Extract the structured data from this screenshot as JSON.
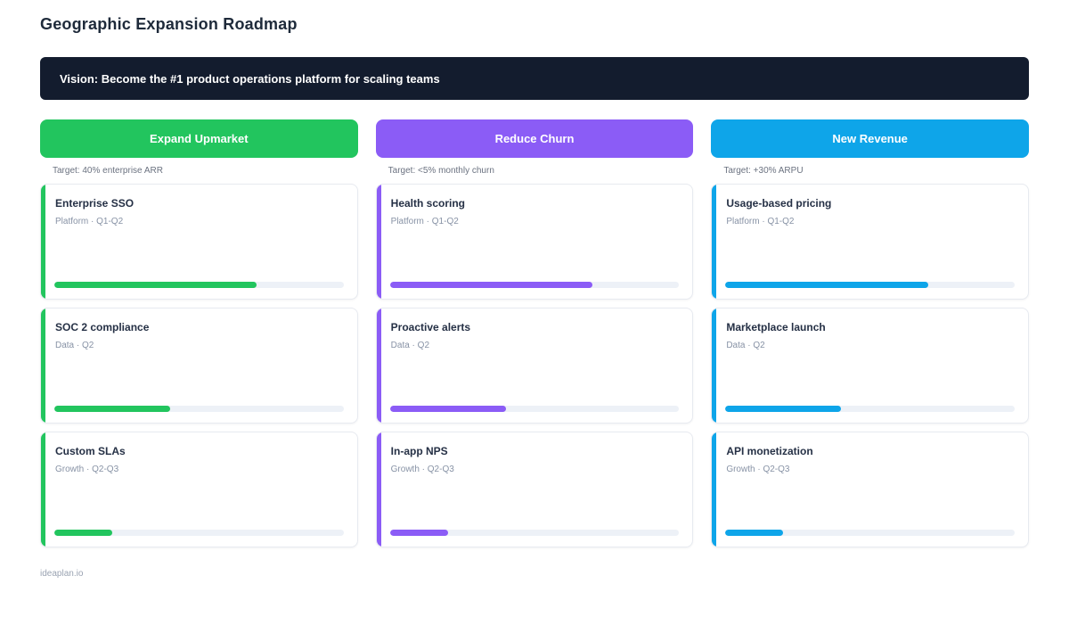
{
  "page": {
    "title": "Geographic Expansion Roadmap",
    "vision": "Vision: Become the #1 product operations platform for scaling teams",
    "footer": "ideaplan.io"
  },
  "colors": {
    "banner_bg": "#131c2e",
    "track": "#edf1f7",
    "green": "#22c55e",
    "purple": "#8b5cf6",
    "blue": "#0ea5e9"
  },
  "columns": [
    {
      "label": "Expand Upmarket",
      "target": "Target: 40% enterprise ARR",
      "color": "#22c55e",
      "cards": [
        {
          "title": "Enterprise SSO",
          "meta": "Platform · Q1-Q2",
          "progress": 70
        },
        {
          "title": "SOC 2 compliance",
          "meta": "Data · Q2",
          "progress": 40
        },
        {
          "title": "Custom SLAs",
          "meta": "Growth · Q2-Q3",
          "progress": 20
        }
      ]
    },
    {
      "label": "Reduce Churn",
      "target": "Target: <5% monthly churn",
      "color": "#8b5cf6",
      "cards": [
        {
          "title": "Health scoring",
          "meta": "Platform · Q1-Q2",
          "progress": 70
        },
        {
          "title": "Proactive alerts",
          "meta": "Data · Q2",
          "progress": 40
        },
        {
          "title": "In-app NPS",
          "meta": "Growth · Q2-Q3",
          "progress": 20
        }
      ]
    },
    {
      "label": "New Revenue",
      "target": "Target: +30% ARPU",
      "color": "#0ea5e9",
      "cards": [
        {
          "title": "Usage-based pricing",
          "meta": "Platform · Q1-Q2",
          "progress": 70
        },
        {
          "title": "Marketplace launch",
          "meta": "Data · Q2",
          "progress": 40
        },
        {
          "title": "API monetization",
          "meta": "Growth · Q2-Q3",
          "progress": 20
        }
      ]
    }
  ]
}
